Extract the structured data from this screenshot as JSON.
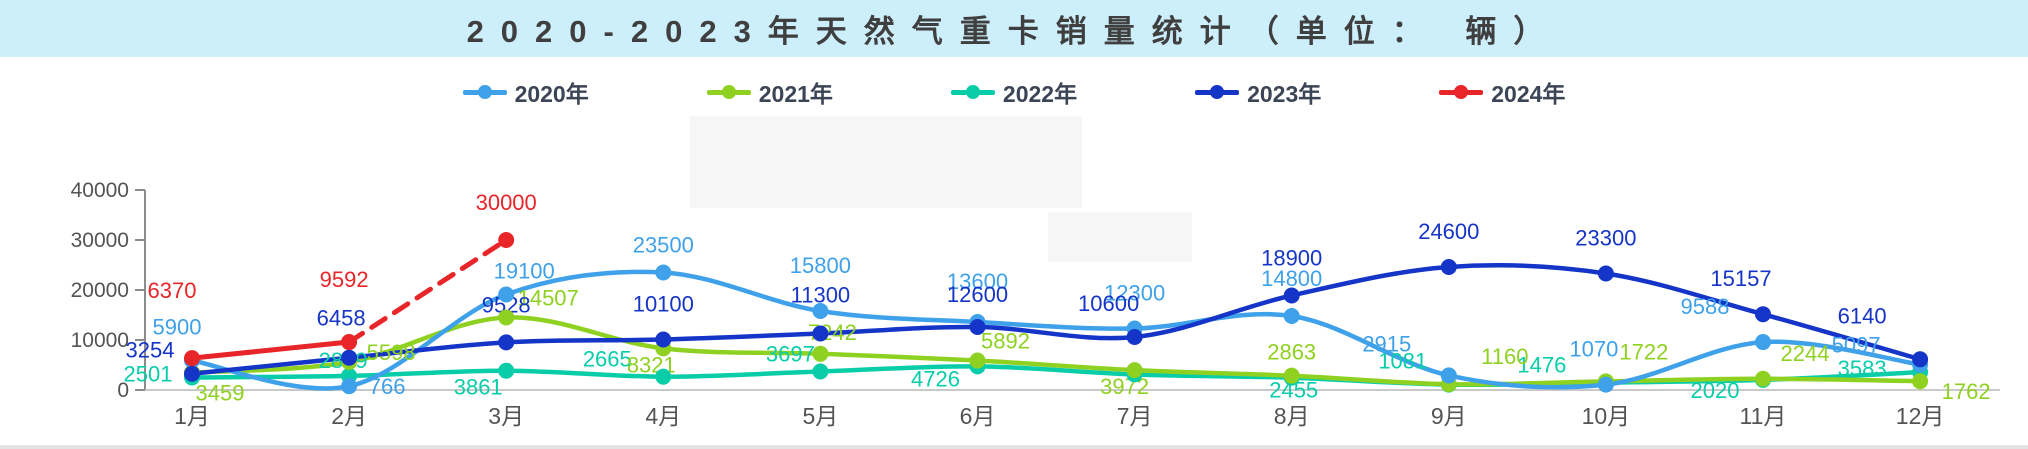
{
  "title": "2020-2023年天然气重卡销量统计（单位： 辆）",
  "title_bar_color": "#cdeefb",
  "chart_data": {
    "type": "line",
    "title": "2020-2023年天然气重卡销量统计（单位：辆）",
    "unit": "辆",
    "categories": [
      "1月",
      "2月",
      "3月",
      "4月",
      "5月",
      "6月",
      "7月",
      "8月",
      "9月",
      "10月",
      "11月",
      "12月"
    ],
    "ylim": [
      0,
      40000
    ],
    "yticks": [
      0,
      10000,
      20000,
      30000,
      40000
    ],
    "grid": false,
    "legend_position": "top",
    "axis_color": "#8c8c8c",
    "baseline_color": "#c9c9c9",
    "tick_label_color": "#545454",
    "series": [
      {
        "name": "2022年",
        "color": "#08cda8",
        "values": [
          2501,
          2819,
          3861,
          2665,
          3697,
          4726,
          3100,
          2455,
          1081,
          1476,
          2020,
          3583
        ],
        "label_offsets": [
          [
            -44,
            4
          ],
          [
            -6,
            -8
          ],
          [
            -28,
            24
          ],
          [
            -56,
            -10
          ],
          [
            -30,
            -10
          ],
          [
            -42,
            20
          ],
          null,
          [
            2,
            20
          ],
          [
            -46,
            -16
          ],
          [
            -64,
            -10
          ],
          [
            -48,
            18
          ],
          [
            -58,
            4
          ]
        ]
      },
      {
        "name": "2021年",
        "color": "#8fd121",
        "values": [
          3459,
          5598,
          14507,
          8321,
          7242,
          5892,
          3972,
          2863,
          1160,
          1722,
          2244,
          1762
        ],
        "label_offsets": [
          [
            28,
            28
          ],
          [
            42,
            -2
          ],
          [
            42,
            -12
          ],
          [
            -12,
            24
          ],
          [
            12,
            -14
          ],
          [
            28,
            -12
          ],
          [
            -10,
            24
          ],
          [
            0,
            -16
          ],
          [
            56,
            -20
          ],
          [
            38,
            -22
          ],
          [
            42,
            -18
          ],
          [
            46,
            18
          ]
        ]
      },
      {
        "name": "2020年",
        "color": "#3ea1e9",
        "values": [
          5900,
          766,
          19100,
          23500,
          15800,
          13600,
          12300,
          14800,
          2915,
          1070,
          9588,
          5097
        ],
        "label_offsets": [
          [
            -15,
            -26
          ],
          [
            38,
            8
          ],
          [
            18,
            -16
          ],
          [
            0,
            -20
          ],
          [
            0,
            -38
          ],
          [
            0,
            -33
          ],
          [
            0,
            -28
          ],
          [
            0,
            -30
          ],
          [
            -62,
            -24
          ],
          [
            -12,
            -28
          ],
          [
            -58,
            -28
          ],
          [
            -64,
            -12
          ]
        ]
      },
      {
        "name": "2023年",
        "color": "#1534c8",
        "values": [
          3254,
          6458,
          9528,
          10100,
          11300,
          12600,
          10600,
          18900,
          24600,
          23300,
          15157,
          6140
        ],
        "label_offsets": [
          [
            -42,
            -16
          ],
          [
            -8,
            -32
          ],
          [
            0,
            -30
          ],
          [
            0,
            -28
          ],
          [
            0,
            -31
          ],
          [
            0,
            -25
          ],
          [
            -26,
            -26
          ],
          [
            0,
            -30
          ],
          [
            0,
            -28
          ],
          [
            0,
            -28
          ],
          [
            -22,
            -28
          ],
          [
            -58,
            -36
          ]
        ]
      },
      {
        "name": "2024年",
        "color": "#e82529",
        "values": [
          6370,
          9592,
          30000,
          null,
          null,
          null,
          null,
          null,
          null,
          null,
          null,
          null
        ],
        "straight": true,
        "dash_from_index": 1,
        "label_offsets": [
          [
            -20,
            -60
          ],
          [
            -5,
            -55
          ],
          [
            0,
            -30
          ]
        ]
      }
    ]
  }
}
